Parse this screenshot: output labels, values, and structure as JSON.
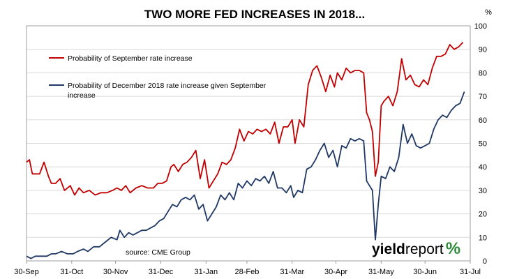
{
  "chart_data": {
    "type": "line",
    "title": "TWO MORE FED INCREASES IN 2018...",
    "y_unit": "%",
    "ylim": [
      0,
      100
    ],
    "y_ticks": [
      0,
      10,
      20,
      30,
      40,
      50,
      60,
      70,
      80,
      90,
      100
    ],
    "x_range": [
      "2017-09-30",
      "2018-07-31"
    ],
    "x_ticks": [
      {
        "date": "2017-09-30",
        "label": "30-Sep"
      },
      {
        "date": "2017-10-31",
        "label": "31-Oct"
      },
      {
        "date": "2017-11-30",
        "label": "30-Nov"
      },
      {
        "date": "2017-12-31",
        "label": "31-Dec"
      },
      {
        "date": "2018-01-31",
        "label": "31-Jan"
      },
      {
        "date": "2018-02-28",
        "label": "28-Feb"
      },
      {
        "date": "2018-03-31",
        "label": "31-Mar"
      },
      {
        "date": "2018-04-30",
        "label": "30-Apr"
      },
      {
        "date": "2018-05-31",
        "label": "31-May"
      },
      {
        "date": "2018-06-30",
        "label": "30-Jun"
      },
      {
        "date": "2018-07-31",
        "label": "31-Jul"
      }
    ],
    "grid": true,
    "legend_position": "top-left",
    "series": [
      {
        "name": "Probability of September rate increase",
        "color": "#c00000",
        "points": [
          [
            "2017-09-30",
            42
          ],
          [
            "2017-10-02",
            43
          ],
          [
            "2017-10-04",
            37
          ],
          [
            "2017-10-09",
            37
          ],
          [
            "2017-10-12",
            42
          ],
          [
            "2017-10-15",
            36
          ],
          [
            "2017-10-17",
            33
          ],
          [
            "2017-10-20",
            33
          ],
          [
            "2017-10-23",
            35
          ],
          [
            "2017-10-26",
            30
          ],
          [
            "2017-10-30",
            32
          ],
          [
            "2017-11-02",
            28
          ],
          [
            "2017-11-05",
            31
          ],
          [
            "2017-11-08",
            29
          ],
          [
            "2017-11-12",
            30
          ],
          [
            "2017-11-16",
            28
          ],
          [
            "2017-11-20",
            29
          ],
          [
            "2017-11-24",
            29
          ],
          [
            "2017-11-28",
            30
          ],
          [
            "2017-12-01",
            31
          ],
          [
            "2017-12-04",
            30
          ],
          [
            "2017-12-07",
            32
          ],
          [
            "2017-12-10",
            29
          ],
          [
            "2017-12-14",
            31
          ],
          [
            "2017-12-18",
            32
          ],
          [
            "2017-12-22",
            31
          ],
          [
            "2017-12-26",
            31
          ],
          [
            "2017-12-29",
            33
          ],
          [
            "2018-01-01",
            33
          ],
          [
            "2018-01-04",
            34
          ],
          [
            "2018-01-07",
            40
          ],
          [
            "2018-01-09",
            41
          ],
          [
            "2018-01-12",
            38
          ],
          [
            "2018-01-15",
            41
          ],
          [
            "2018-01-18",
            42
          ],
          [
            "2018-01-21",
            44
          ],
          [
            "2018-01-24",
            47
          ],
          [
            "2018-01-27",
            35
          ],
          [
            "2018-01-30",
            43
          ],
          [
            "2018-02-02",
            31
          ],
          [
            "2018-02-05",
            34
          ],
          [
            "2018-02-08",
            37
          ],
          [
            "2018-02-11",
            42
          ],
          [
            "2018-02-14",
            41
          ],
          [
            "2018-02-17",
            43
          ],
          [
            "2018-02-20",
            48
          ],
          [
            "2018-02-23",
            56
          ],
          [
            "2018-02-26",
            51
          ],
          [
            "2018-03-01",
            55
          ],
          [
            "2018-03-04",
            54
          ],
          [
            "2018-03-07",
            56
          ],
          [
            "2018-03-10",
            55
          ],
          [
            "2018-03-13",
            56
          ],
          [
            "2018-03-16",
            54
          ],
          [
            "2018-03-19",
            59
          ],
          [
            "2018-03-22",
            50
          ],
          [
            "2018-03-25",
            57
          ],
          [
            "2018-03-28",
            57
          ],
          [
            "2018-03-31",
            60
          ],
          [
            "2018-04-02",
            50
          ],
          [
            "2018-04-05",
            60
          ],
          [
            "2018-04-08",
            57
          ],
          [
            "2018-04-11",
            75
          ],
          [
            "2018-04-14",
            81
          ],
          [
            "2018-04-17",
            83
          ],
          [
            "2018-04-20",
            78
          ],
          [
            "2018-04-23",
            72
          ],
          [
            "2018-04-26",
            79
          ],
          [
            "2018-04-29",
            74
          ],
          [
            "2018-05-01",
            80
          ],
          [
            "2018-05-04",
            77
          ],
          [
            "2018-05-07",
            82
          ],
          [
            "2018-05-10",
            80
          ],
          [
            "2018-05-13",
            81
          ],
          [
            "2018-05-16",
            81
          ],
          [
            "2018-05-19",
            80
          ],
          [
            "2018-05-21",
            63
          ],
          [
            "2018-05-23",
            60
          ],
          [
            "2018-05-25",
            55
          ],
          [
            "2018-05-27",
            36
          ],
          [
            "2018-05-29",
            42
          ],
          [
            "2018-05-31",
            66
          ],
          [
            "2018-06-02",
            68
          ],
          [
            "2018-06-05",
            70
          ],
          [
            "2018-06-08",
            66
          ],
          [
            "2018-06-11",
            72
          ],
          [
            "2018-06-14",
            86
          ],
          [
            "2018-06-17",
            77
          ],
          [
            "2018-06-20",
            79
          ],
          [
            "2018-06-23",
            75
          ],
          [
            "2018-06-26",
            74
          ],
          [
            "2018-06-29",
            77
          ],
          [
            "2018-07-02",
            75
          ],
          [
            "2018-07-05",
            82
          ],
          [
            "2018-07-08",
            87
          ],
          [
            "2018-07-11",
            87
          ],
          [
            "2018-07-14",
            88
          ],
          [
            "2018-07-17",
            92
          ],
          [
            "2018-07-20",
            90
          ],
          [
            "2018-07-23",
            91
          ],
          [
            "2018-07-26",
            93
          ]
        ]
      },
      {
        "name": "Probability of December 2018 rate increase given September increase",
        "color": "#1f3864",
        "points": [
          [
            "2017-09-30",
            2
          ],
          [
            "2017-10-03",
            1
          ],
          [
            "2017-10-06",
            2
          ],
          [
            "2017-10-10",
            2
          ],
          [
            "2017-10-14",
            2
          ],
          [
            "2017-10-17",
            3
          ],
          [
            "2017-10-20",
            3
          ],
          [
            "2017-10-24",
            4
          ],
          [
            "2017-10-28",
            3
          ],
          [
            "2017-11-01",
            3
          ],
          [
            "2017-11-04",
            4
          ],
          [
            "2017-11-08",
            5
          ],
          [
            "2017-11-11",
            4
          ],
          [
            "2017-11-15",
            6
          ],
          [
            "2017-11-19",
            6
          ],
          [
            "2017-11-23",
            8
          ],
          [
            "2017-11-27",
            10
          ],
          [
            "2017-12-01",
            9
          ],
          [
            "2017-12-03",
            13
          ],
          [
            "2017-12-06",
            10
          ],
          [
            "2017-12-09",
            12
          ],
          [
            "2017-12-12",
            11
          ],
          [
            "2017-12-15",
            12
          ],
          [
            "2017-12-18",
            13
          ],
          [
            "2017-12-21",
            13
          ],
          [
            "2017-12-24",
            14
          ],
          [
            "2017-12-27",
            15
          ],
          [
            "2017-12-30",
            17
          ],
          [
            "2018-01-02",
            18
          ],
          [
            "2018-01-05",
            21
          ],
          [
            "2018-01-08",
            24
          ],
          [
            "2018-01-11",
            23
          ],
          [
            "2018-01-14",
            26
          ],
          [
            "2018-01-17",
            27
          ],
          [
            "2018-01-20",
            26
          ],
          [
            "2018-01-23",
            28
          ],
          [
            "2018-01-26",
            22
          ],
          [
            "2018-01-29",
            24
          ],
          [
            "2018-02-01",
            17
          ],
          [
            "2018-02-04",
            20
          ],
          [
            "2018-02-07",
            23
          ],
          [
            "2018-02-10",
            28
          ],
          [
            "2018-02-13",
            26
          ],
          [
            "2018-02-16",
            29
          ],
          [
            "2018-02-19",
            26
          ],
          [
            "2018-02-22",
            33
          ],
          [
            "2018-02-25",
            31
          ],
          [
            "2018-02-28",
            34
          ],
          [
            "2018-03-03",
            32
          ],
          [
            "2018-03-06",
            35
          ],
          [
            "2018-03-09",
            34
          ],
          [
            "2018-03-12",
            36
          ],
          [
            "2018-03-15",
            33
          ],
          [
            "2018-03-18",
            38
          ],
          [
            "2018-03-21",
            31
          ],
          [
            "2018-03-24",
            31
          ],
          [
            "2018-03-27",
            29
          ],
          [
            "2018-03-30",
            32
          ],
          [
            "2018-04-01",
            27
          ],
          [
            "2018-04-04",
            30
          ],
          [
            "2018-04-07",
            29
          ],
          [
            "2018-04-10",
            39
          ],
          [
            "2018-04-13",
            40
          ],
          [
            "2018-04-16",
            43
          ],
          [
            "2018-04-19",
            47
          ],
          [
            "2018-04-22",
            50
          ],
          [
            "2018-04-25",
            44
          ],
          [
            "2018-04-28",
            47
          ],
          [
            "2018-05-01",
            40
          ],
          [
            "2018-05-04",
            49
          ],
          [
            "2018-05-07",
            48
          ],
          [
            "2018-05-10",
            52
          ],
          [
            "2018-05-13",
            51
          ],
          [
            "2018-05-16",
            52
          ],
          [
            "2018-05-19",
            51
          ],
          [
            "2018-05-21",
            34
          ],
          [
            "2018-05-23",
            32
          ],
          [
            "2018-05-25",
            30
          ],
          [
            "2018-05-27",
            9
          ],
          [
            "2018-05-29",
            24
          ],
          [
            "2018-05-31",
            36
          ],
          [
            "2018-06-03",
            35
          ],
          [
            "2018-06-06",
            40
          ],
          [
            "2018-06-09",
            38
          ],
          [
            "2018-06-12",
            44
          ],
          [
            "2018-06-15",
            58
          ],
          [
            "2018-06-18",
            50
          ],
          [
            "2018-06-21",
            54
          ],
          [
            "2018-06-24",
            49
          ],
          [
            "2018-06-27",
            48
          ],
          [
            "2018-06-30",
            49
          ],
          [
            "2018-07-03",
            50
          ],
          [
            "2018-07-06",
            56
          ],
          [
            "2018-07-09",
            60
          ],
          [
            "2018-07-12",
            62
          ],
          [
            "2018-07-15",
            61
          ],
          [
            "2018-07-18",
            64
          ],
          [
            "2018-07-21",
            66
          ],
          [
            "2018-07-24",
            67
          ],
          [
            "2018-07-27",
            72
          ]
        ]
      }
    ],
    "annotations": {
      "source": "source: CME Group",
      "legend_red_line1": "Probability of September rate increase",
      "legend_blue_line1": "Probability of December 2018 rate increase given September",
      "legend_blue_line2": "increase"
    }
  },
  "logo": {
    "part1": "yield",
    "part2": "report",
    "pct": "%",
    "pct_color": "#2e8b3a"
  }
}
